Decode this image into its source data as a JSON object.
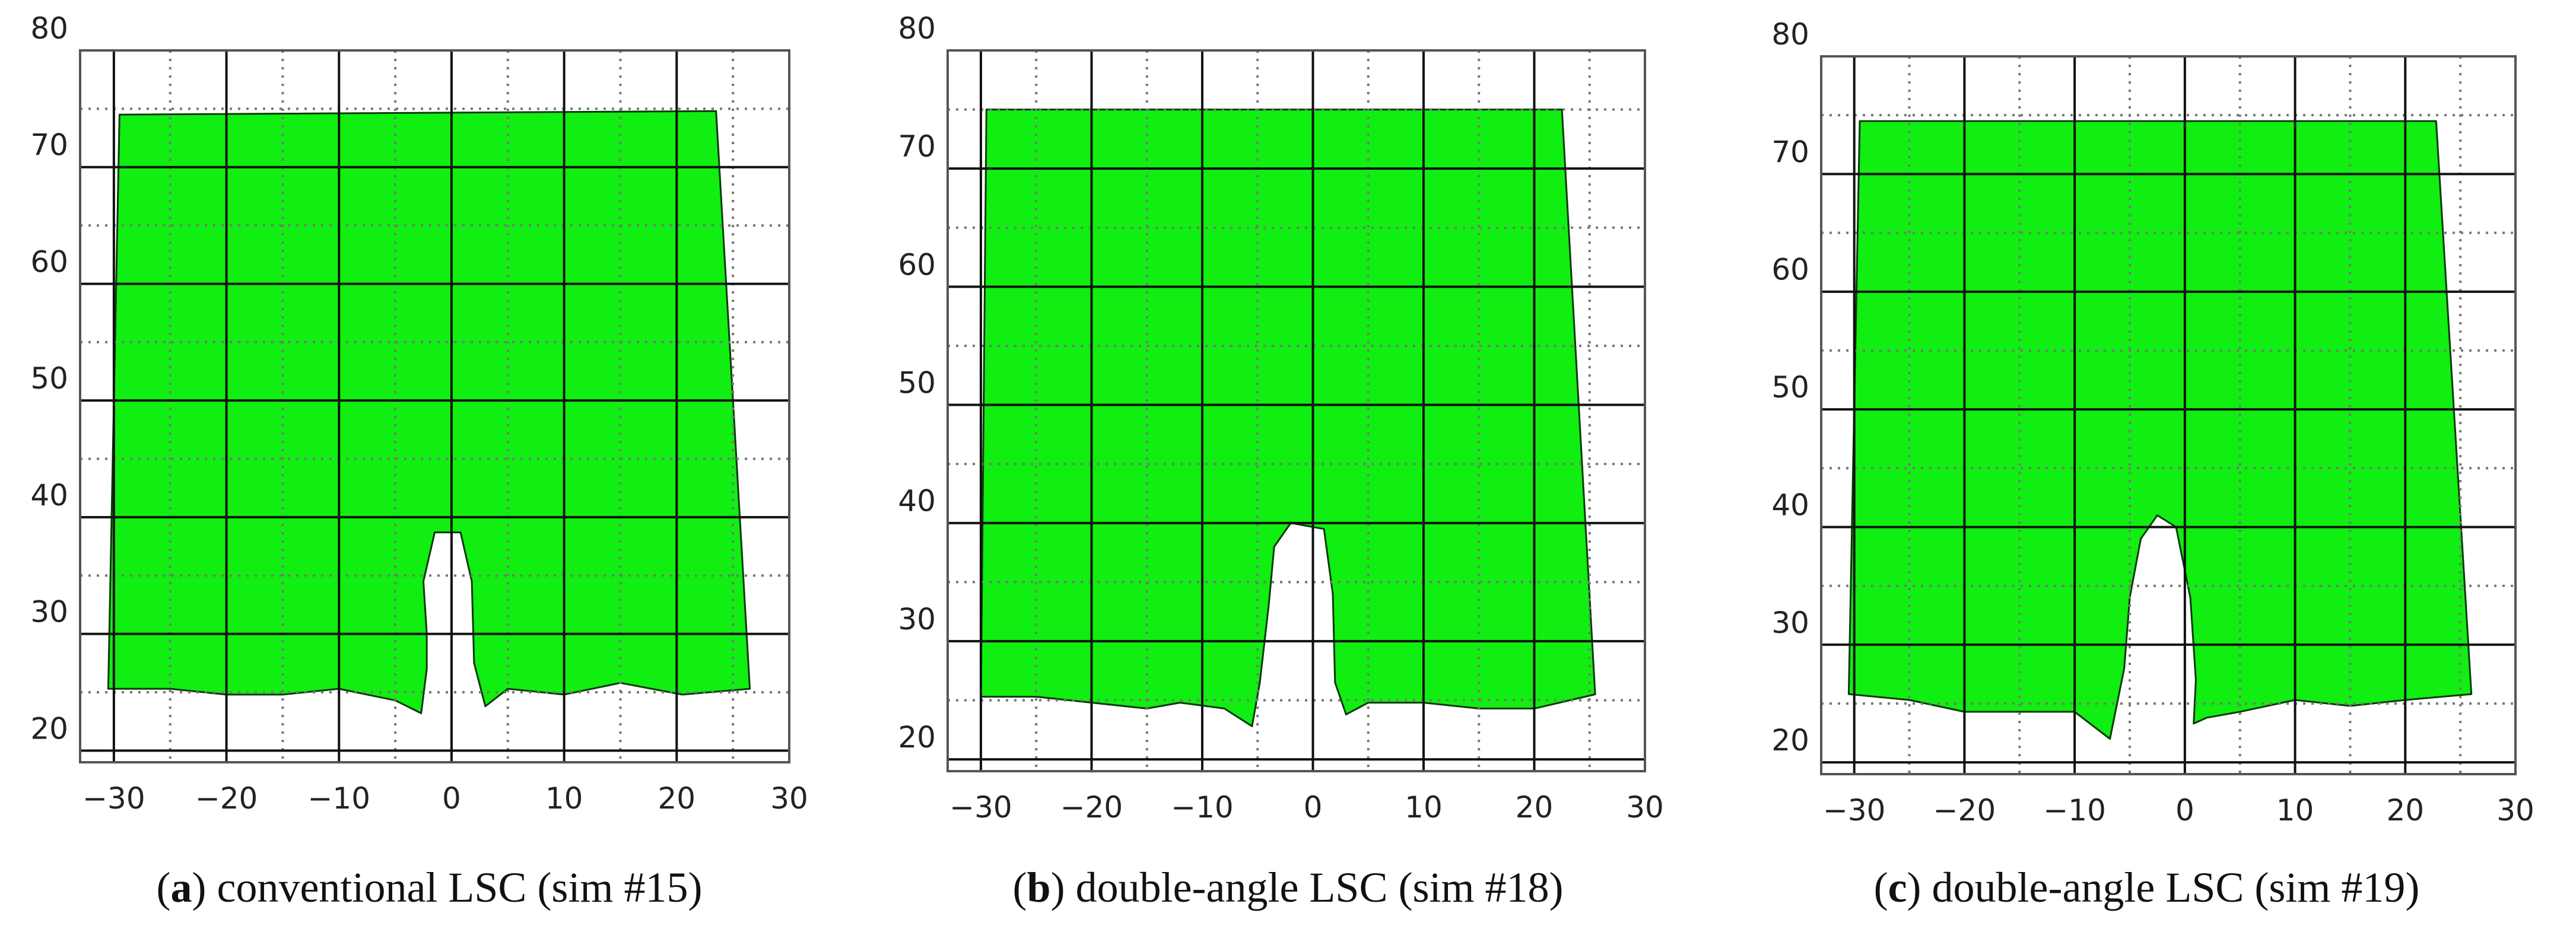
{
  "colors": {
    "fill": "#11ee11",
    "grid_major": "#111111",
    "grid_minor": "#777777",
    "background": "#ffffff"
  },
  "chart_data": [
    {
      "type": "area",
      "letter": "a",
      "caption": "conventional LSC (sim #15)",
      "xlim": [
        -33,
        30
      ],
      "ylim": [
        19,
        80
      ],
      "xticks": [
        -30,
        -20,
        -10,
        0,
        10,
        20,
        30
      ],
      "yticks": [
        20,
        30,
        40,
        50,
        60,
        70,
        80
      ],
      "grid": true,
      "fill_color": "#11ee11",
      "outline": [
        [
          -29.5,
          74.5
        ],
        [
          23.5,
          74.8
        ],
        [
          26.5,
          25.3
        ],
        [
          20.5,
          24.8
        ],
        [
          15,
          25.8
        ],
        [
          10,
          24.8
        ],
        [
          5,
          25.3
        ],
        [
          3,
          23.8
        ],
        [
          2,
          27.5
        ],
        [
          1.8,
          34.5
        ],
        [
          0.8,
          38.7
        ],
        [
          -1.5,
          38.7
        ],
        [
          -2.5,
          34.5
        ],
        [
          -2.2,
          30
        ],
        [
          -2.2,
          27
        ],
        [
          -2.7,
          23.2
        ],
        [
          -5,
          24.3
        ],
        [
          -10,
          25.3
        ],
        [
          -15,
          24.8
        ],
        [
          -20,
          24.8
        ],
        [
          -25,
          25.3
        ],
        [
          -30.5,
          25.3
        ]
      ]
    },
    {
      "type": "area",
      "letter": "b",
      "caption": "double-angle LSC (sim #18)",
      "xlim": [
        -33,
        30
      ],
      "ylim": [
        19,
        80
      ],
      "xticks": [
        -30,
        -20,
        -10,
        0,
        10,
        20,
        30
      ],
      "yticks": [
        20,
        30,
        40,
        50,
        60,
        70,
        80
      ],
      "grid": true,
      "fill_color": "#11ee11",
      "outline": [
        [
          -29.5,
          75
        ],
        [
          22.5,
          75
        ],
        [
          25.5,
          25.5
        ],
        [
          20,
          24.3
        ],
        [
          15,
          24.3
        ],
        [
          10,
          24.8
        ],
        [
          5,
          24.8
        ],
        [
          3,
          23.8
        ],
        [
          2,
          26.5
        ],
        [
          1.8,
          34
        ],
        [
          1,
          39.5
        ],
        [
          -2,
          40
        ],
        [
          -3.5,
          38
        ],
        [
          -4,
          33
        ],
        [
          -4.8,
          26.5
        ],
        [
          -5.5,
          22.8
        ],
        [
          -8,
          24.3
        ],
        [
          -12,
          24.8
        ],
        [
          -15,
          24.3
        ],
        [
          -20,
          24.8
        ],
        [
          -25,
          25.3
        ],
        [
          -30,
          25.3
        ]
      ]
    },
    {
      "type": "area",
      "letter": "c",
      "caption": "double-angle LSC (sim #19)",
      "xlim": [
        -33,
        30
      ],
      "ylim": [
        19,
        80
      ],
      "xticks": [
        -30,
        -20,
        -10,
        0,
        10,
        20,
        30
      ],
      "yticks": [
        20,
        30,
        40,
        50,
        60,
        70,
        80
      ],
      "grid": true,
      "fill_color": "#11ee11",
      "outline": [
        [
          -29.5,
          74.5
        ],
        [
          22.8,
          74.5
        ],
        [
          26,
          25.8
        ],
        [
          20,
          25.3
        ],
        [
          15,
          24.8
        ],
        [
          10,
          25.3
        ],
        [
          5,
          24.3
        ],
        [
          2,
          23.8
        ],
        [
          0.8,
          23.3
        ],
        [
          1,
          27
        ],
        [
          0.5,
          34
        ],
        [
          -0.8,
          40
        ],
        [
          -2.5,
          41
        ],
        [
          -4,
          39
        ],
        [
          -5,
          34
        ],
        [
          -5.5,
          28
        ],
        [
          -6.8,
          22
        ],
        [
          -10,
          24.3
        ],
        [
          -15,
          24.3
        ],
        [
          -20,
          24.3
        ],
        [
          -25,
          25.3
        ],
        [
          -30.5,
          25.8
        ]
      ]
    }
  ]
}
